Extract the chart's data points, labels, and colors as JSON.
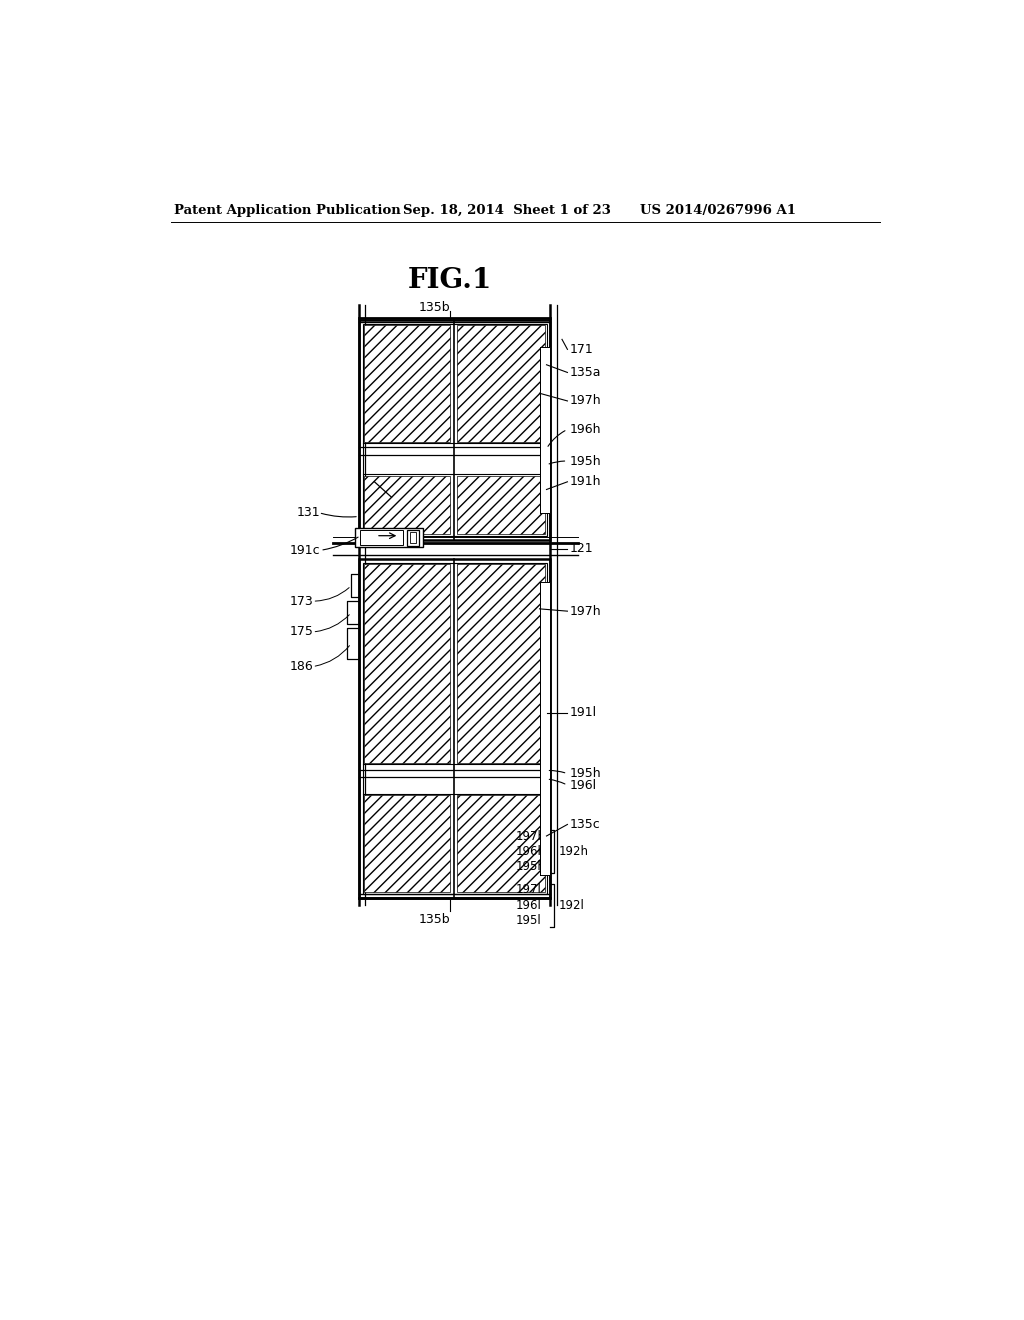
{
  "header_left": "Patent Application Publication",
  "header_mid": "Sep. 18, 2014  Sheet 1 of 23",
  "header_right": "US 2014/0267996 A1",
  "bg_color": "#ffffff",
  "line_color": "#000000",
  "label_fontsize": 9.0,
  "header_fontsize": 9.5,
  "title_fontsize": 20,
  "title": "FIG.1"
}
